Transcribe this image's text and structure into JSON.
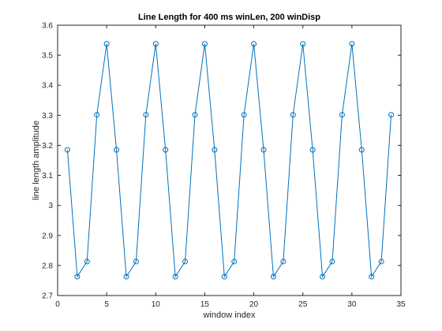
{
  "chart_data": {
    "type": "line",
    "title": "Line Length for 400 ms winLen, 200 winDisp",
    "xlabel": "window index",
    "ylabel": "line length amplitude",
    "xlim": [
      0,
      35
    ],
    "ylim": [
      2.7,
      3.6
    ],
    "xticks": [
      0,
      5,
      10,
      15,
      20,
      25,
      30,
      35
    ],
    "yticks": [
      2.7,
      2.8,
      2.9,
      3.0,
      3.1,
      3.2,
      3.3,
      3.4,
      3.5,
      3.6
    ],
    "xtick_labels": [
      "0",
      "5",
      "10",
      "15",
      "20",
      "25",
      "30",
      "35"
    ],
    "ytick_labels": [
      "2.7",
      "2.8",
      "2.9",
      "3",
      "3.1",
      "3.2",
      "3.3",
      "3.4",
      "3.5",
      "3.6"
    ],
    "grid": false,
    "marker": "circle",
    "line_color": "#0072BD",
    "series": [
      {
        "x": [
          1,
          2,
          3,
          4,
          5,
          6,
          7,
          8,
          9,
          10,
          11,
          12,
          13,
          14,
          15,
          16,
          17,
          18,
          19,
          20,
          21,
          22,
          23,
          24,
          25,
          26,
          27,
          28,
          29,
          30,
          31,
          32,
          33,
          34
        ],
        "values": [
          3.185,
          2.763,
          2.813,
          3.302,
          3.538,
          3.185,
          2.763,
          2.813,
          3.302,
          3.538,
          3.185,
          2.763,
          2.813,
          3.302,
          3.538,
          3.185,
          2.763,
          2.813,
          3.302,
          3.538,
          3.185,
          2.763,
          2.813,
          3.302,
          3.538,
          3.185,
          2.763,
          2.813,
          3.302,
          3.538,
          3.185,
          2.763,
          2.813,
          3.302
        ]
      }
    ]
  }
}
